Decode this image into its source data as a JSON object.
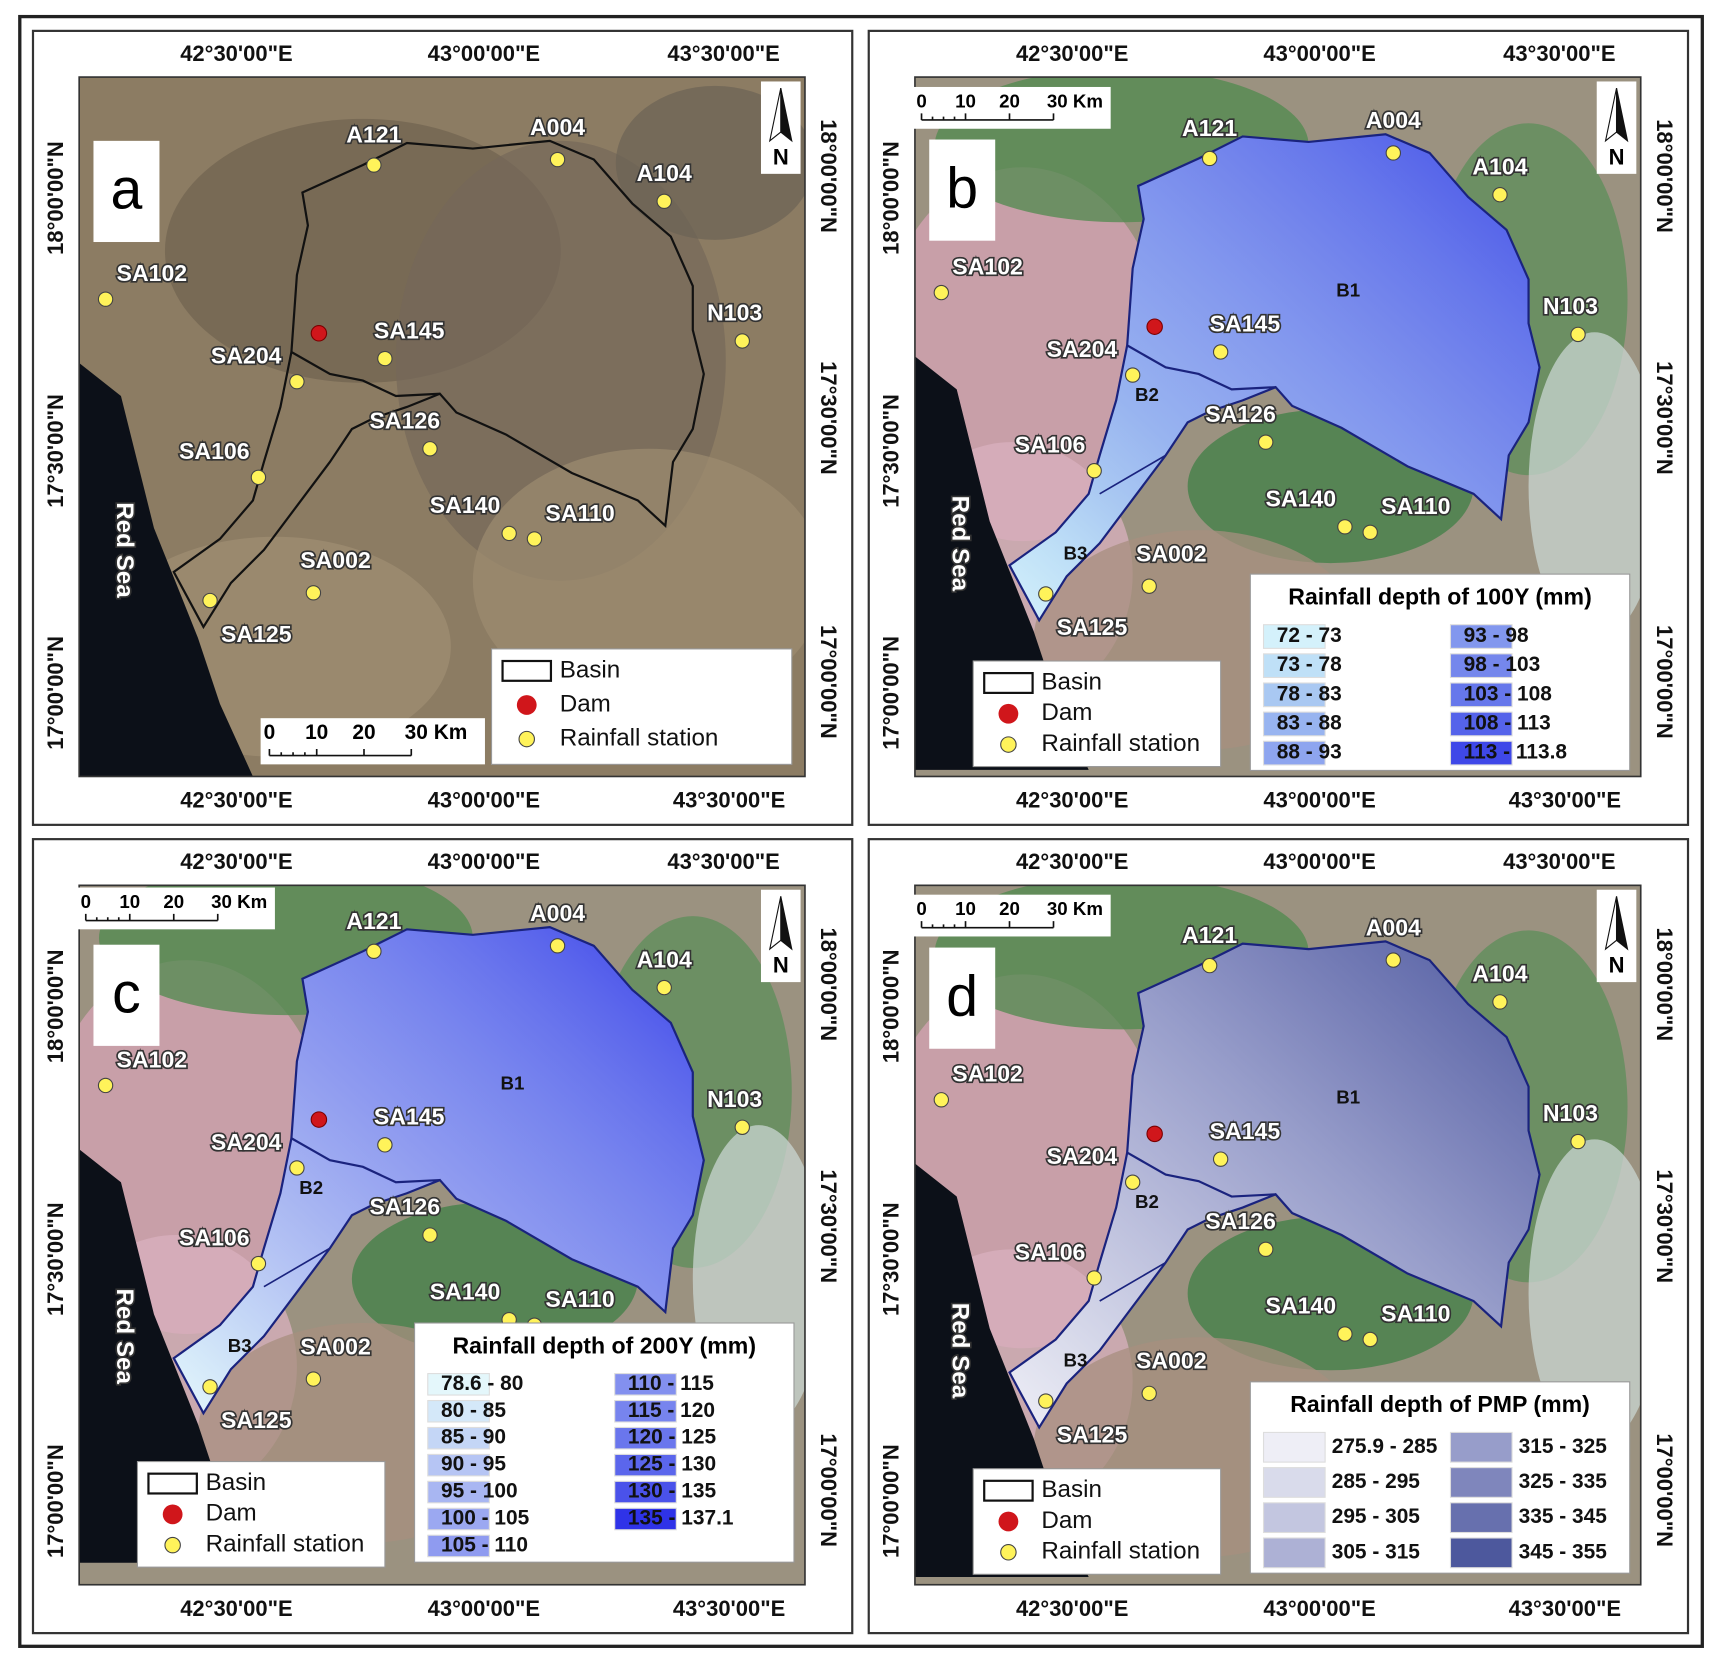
{
  "figure": {
    "longitude_labels": [
      "42°30'00\"E",
      "43°00'00\"E",
      "43°30'00\"E"
    ],
    "latitude_labels": [
      "18°00'00\"N",
      "17°30'00\"N",
      "17°00'00\"N"
    ],
    "north": "N",
    "sea_label": "Red Sea",
    "scale_bar": [
      "0",
      "10",
      "20",
      "30 Km"
    ],
    "legend": [
      "Basin",
      "Dam",
      "Rainfall station"
    ],
    "stations": [
      "A121",
      "A004",
      "A104",
      "SA102",
      "SA145",
      "SA204",
      "N103",
      "SA126",
      "SA106",
      "SA140",
      "SA110",
      "SA002",
      "SA125"
    ],
    "zones": [
      "B1",
      "B2",
      "B3"
    ],
    "panels": [
      {
        "letter": "a"
      },
      {
        "letter": "b",
        "legend_title": "Rainfall depth of 100Y (mm)",
        "classes": [
          {
            "label": "72 - 73",
            "color": "#d4f1fb"
          },
          {
            "label": "73 - 78",
            "color": "#bfe0f7"
          },
          {
            "label": "78 - 83",
            "color": "#a9c8f2"
          },
          {
            "label": "83 - 88",
            "color": "#98b4f0"
          },
          {
            "label": "88 - 93",
            "color": "#8ea5ef"
          },
          {
            "label": "93 - 98",
            "color": "#8297ee"
          },
          {
            "label": "98 - 103",
            "color": "#7587ec"
          },
          {
            "label": "103 - 108",
            "color": "#6677eb"
          },
          {
            "label": "108 - 113",
            "color": "#5563ea"
          },
          {
            "label": "113 - 113.8",
            "color": "#3f48e8"
          }
        ]
      },
      {
        "letter": "c",
        "legend_title": "Rainfall depth of 200Y (mm)",
        "classes": [
          {
            "label": "78.6 - 80",
            "color": "#e4f7fb"
          },
          {
            "label": "80 - 85",
            "color": "#d4e8f9"
          },
          {
            "label": "85 - 90",
            "color": "#c4d6f6"
          },
          {
            "label": "90 - 95",
            "color": "#b6c5f4"
          },
          {
            "label": "95 - 100",
            "color": "#a8b6f2"
          },
          {
            "label": "100 - 105",
            "color": "#9ba8f1"
          },
          {
            "label": "105 - 110",
            "color": "#8f9bf0"
          },
          {
            "label": "110 - 115",
            "color": "#8390ef"
          },
          {
            "label": "115 - 120",
            "color": "#7784ee"
          },
          {
            "label": "120 - 125",
            "color": "#6a76ed"
          },
          {
            "label": "125 - 130",
            "color": "#5b66ec"
          },
          {
            "label": "130 - 135",
            "color": "#4a52ea"
          },
          {
            "label": "135 - 137.1",
            "color": "#2f33e8"
          }
        ]
      },
      {
        "letter": "d",
        "legend_title": "Rainfall depth of PMP (mm)",
        "classes": [
          {
            "label": "275.9 - 285",
            "color": "#eeeef6"
          },
          {
            "label": "285 - 295",
            "color": "#d9dbeb"
          },
          {
            "label": "295 - 305",
            "color": "#c3c6e0"
          },
          {
            "label": "305 - 315",
            "color": "#adb1d5"
          },
          {
            "label": "315 - 325",
            "color": "#979dca"
          },
          {
            "label": "325 - 335",
            "color": "#7f86bc"
          },
          {
            "label": "335 - 345",
            "color": "#6770ae"
          },
          {
            "label": "345 - 355",
            "color": "#4d589d"
          }
        ]
      }
    ]
  }
}
